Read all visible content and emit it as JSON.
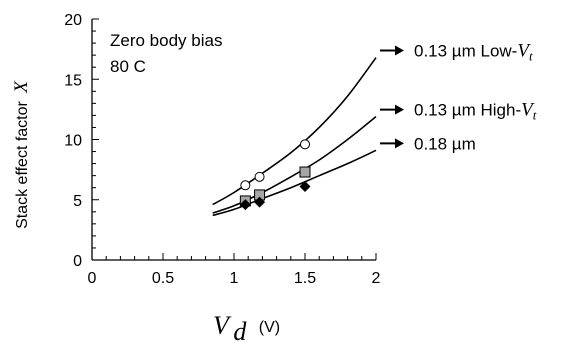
{
  "chart_data": {
    "type": "line",
    "title": "",
    "annotation_lines": [
      "Zero body bias",
      "80 C"
    ],
    "xlabel": {
      "var": "V",
      "sub": "d",
      "unit": "(V)"
    },
    "ylabel": {
      "text": "Stack effect factor",
      "var": "X"
    },
    "xlim": [
      0,
      2
    ],
    "ylim": [
      0,
      20
    ],
    "xticks": [
      0,
      0.5,
      1,
      1.5,
      2
    ],
    "xtick_labels": [
      "0",
      "0.5",
      "1",
      "1.5",
      "2"
    ],
    "yticks": [
      0,
      5,
      10,
      15,
      20
    ],
    "ytick_labels": [
      "0",
      "5",
      "10",
      "15",
      "20"
    ],
    "grid": false,
    "series": [
      {
        "name": "0.13 µm Low-Vt",
        "label": {
          "prefix": "0.13 µm Low-",
          "var": "V",
          "sub": "t"
        },
        "marker": "circle-open",
        "fit_curve": {
          "x": [
            0.85,
            1.0,
            1.2,
            1.4,
            1.6,
            1.8,
            2.0
          ],
          "y": [
            4.6,
            5.6,
            7.2,
            8.9,
            11.0,
            13.6,
            16.8
          ]
        },
        "points": {
          "x": [
            1.08,
            1.18,
            1.5
          ],
          "y": [
            6.2,
            6.9,
            9.6
          ]
        }
      },
      {
        "name": "0.13 µm High-Vt",
        "label": {
          "prefix": "0.13 µm High-",
          "var": "V",
          "sub": "t"
        },
        "marker": "square-gray",
        "fit_curve": {
          "x": [
            0.85,
            1.0,
            1.2,
            1.4,
            1.6,
            1.8,
            2.0
          ],
          "y": [
            3.9,
            4.5,
            5.6,
            6.9,
            8.3,
            10.0,
            11.9
          ]
        },
        "points": {
          "x": [
            1.08,
            1.18,
            1.5
          ],
          "y": [
            4.9,
            5.4,
            7.3
          ]
        }
      },
      {
        "name": "0.18 µm",
        "label": {
          "prefix": "0.18 µm",
          "var": "",
          "sub": ""
        },
        "marker": "diamond-filled",
        "fit_curve": {
          "x": [
            0.85,
            1.0,
            1.2,
            1.4,
            1.6,
            1.8,
            2.0
          ],
          "y": [
            3.7,
            4.2,
            5.1,
            6.0,
            7.0,
            8.0,
            9.1
          ]
        },
        "points": {
          "x": [
            1.08,
            1.18,
            1.5
          ],
          "y": [
            4.6,
            4.8,
            6.1
          ]
        }
      }
    ],
    "colors": {
      "line": "#000000",
      "square_fill": "#a6a6a6",
      "marker_stroke": "#000000"
    }
  }
}
